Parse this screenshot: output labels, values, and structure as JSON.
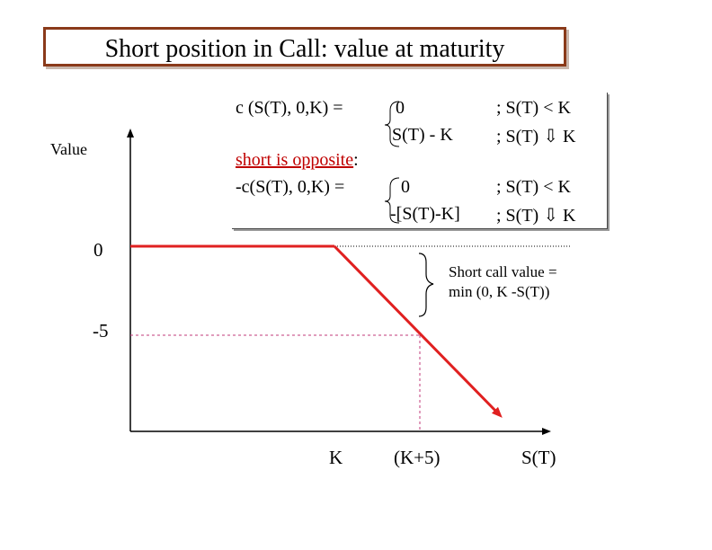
{
  "title": "Short position in Call: value at maturity",
  "formula": {
    "line1_lhs": "c (S(T), 0,K)  =",
    "line1_case": "0",
    "line1_cond": ";  S(T) < K",
    "line2_case": "S(T) - K",
    "line2_cond": ";  S(T) ⇩ K",
    "opposite_label": "short is opposite",
    "opposite_colon": ":",
    "line3_lhs": "-c(S(T), 0,K) =",
    "line3_case": "0",
    "line3_cond": ";  S(T) < K",
    "line4_case": "-[S(T)-K]",
    "line4_cond": ";  S(T) ⇩ K"
  },
  "axes": {
    "y_label": "Value",
    "x_label": "S(T)",
    "y_tick_0": "0",
    "y_tick_neg5": "-5",
    "x_tick_k": "K",
    "x_tick_k5": "(K+5)"
  },
  "annotation": {
    "line1": "Short call value =",
    "line2": "min (0, K -S(T))"
  },
  "colors": {
    "payoff": "#e02020",
    "guide": "#c0387a",
    "title_border": "#8a3a1a"
  }
}
